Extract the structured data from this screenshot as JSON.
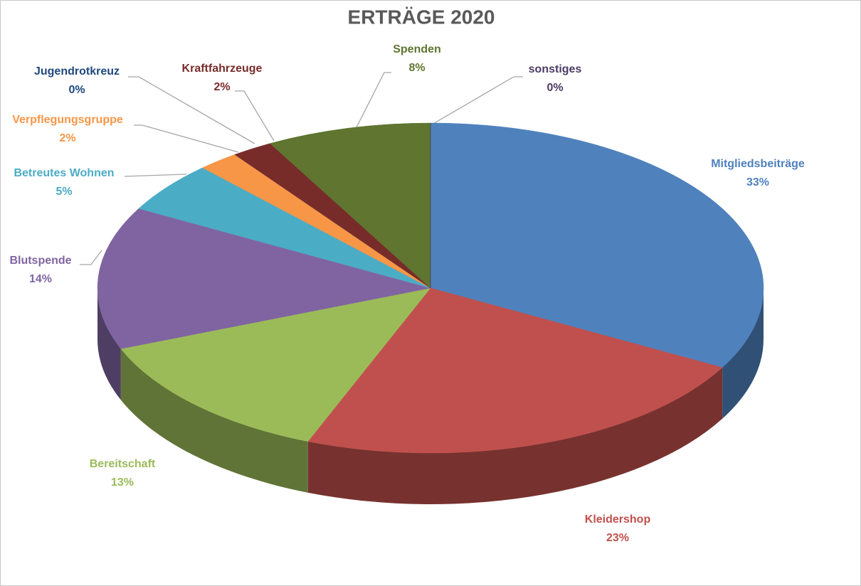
{
  "chart_data": {
    "type": "pie3d",
    "title": "ERTRÄGE 2020",
    "categories": [
      "Mitgliedsbeiträge",
      "Kleidershop",
      "Bereitschaft",
      "Blutspende",
      "Betreutes Wohnen",
      "Verpflegungsgruppe",
      "Jugendrotkreuz",
      "Kraftfahrzeuge",
      "Spenden",
      "sonstiges"
    ],
    "values": [
      33,
      23,
      13,
      14,
      5,
      2,
      0,
      2,
      8,
      0
    ],
    "value_labels": [
      "33%",
      "23%",
      "13%",
      "14%",
      "5%",
      "2%",
      "0%",
      "2%",
      "8%",
      "0%"
    ],
    "colors": [
      "#4f81bd",
      "#c0504d",
      "#9bbb59",
      "#8064a2",
      "#4bacc6",
      "#f79646",
      "#1f497d",
      "#772c2a",
      "#5f7530",
      "#4d3b62"
    ]
  }
}
